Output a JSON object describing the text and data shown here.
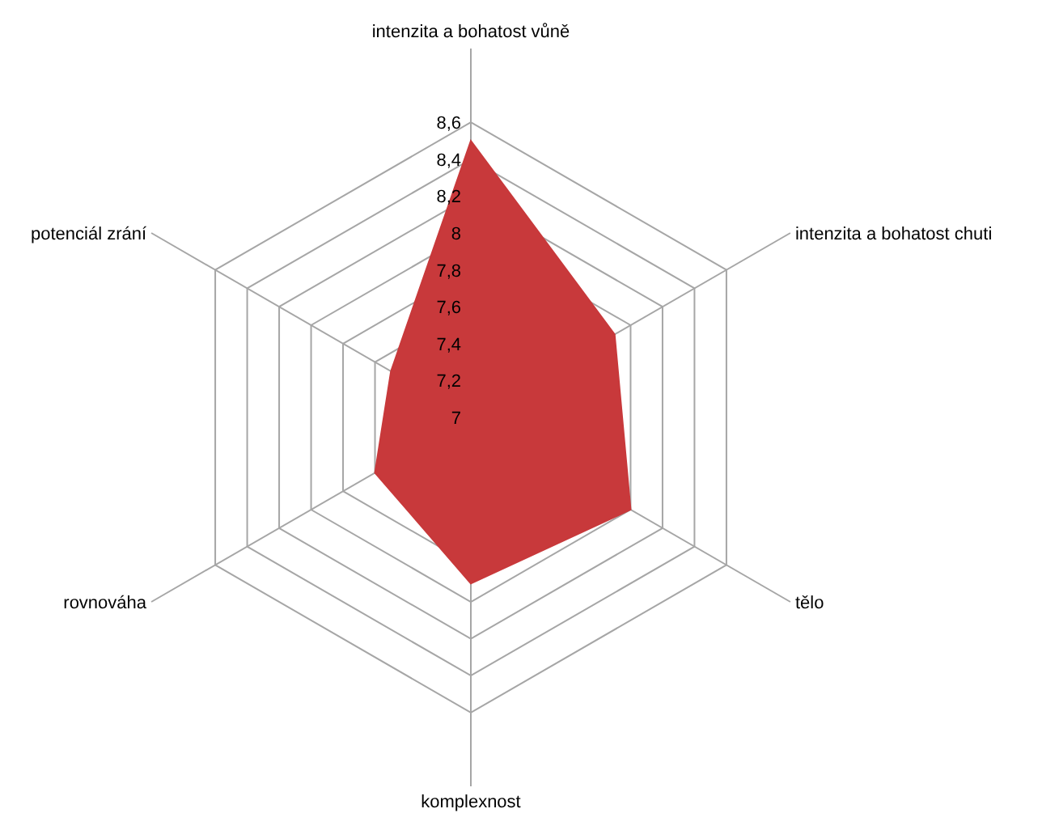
{
  "chart_data": {
    "type": "radar",
    "categories": [
      "intenzita a bohatost vůně",
      "intenzita a bohatost chuti",
      "tělo",
      "komplexnost",
      "rovnováha",
      "potenciál zrání"
    ],
    "series": [
      {
        "color": "#c8393b",
        "values": [
          8.5,
          7.9,
          8.0,
          7.9,
          7.6,
          7.5
        ]
      }
    ],
    "ylim": [
      7,
      8.6
    ],
    "yticks": [
      7,
      {
        "value": 7.2,
        "label": "7,2"
      },
      {
        "value": 7.4,
        "label": "7,4"
      },
      {
        "value": 7.6,
        "label": "7,6"
      },
      {
        "value": 7.8,
        "label": "7,8"
      },
      8,
      {
        "value": 8.2,
        "label": "8,2"
      },
      {
        "value": 8.4,
        "label": "8,4"
      },
      {
        "value": 8.6,
        "label": "8,6"
      }
    ],
    "grid": true
  }
}
